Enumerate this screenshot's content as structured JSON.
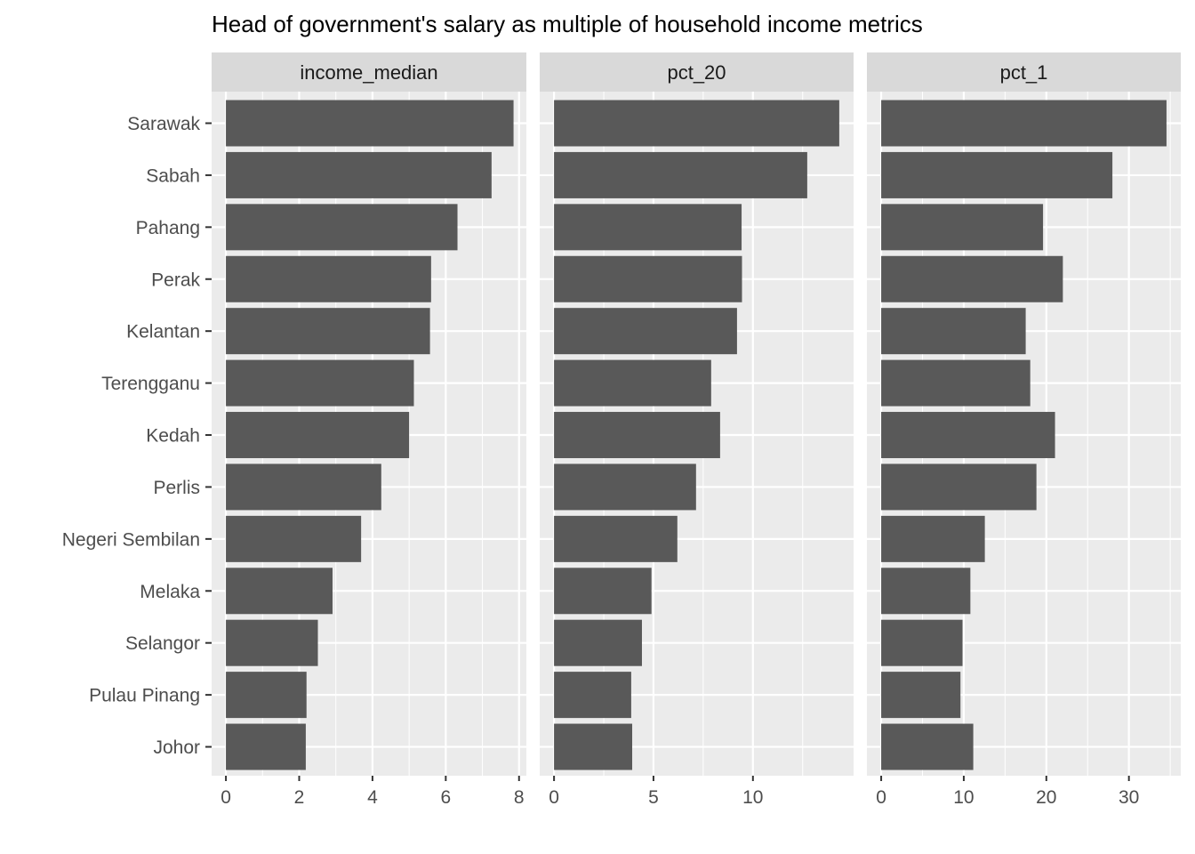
{
  "chart_data": {
    "type": "bar",
    "orientation": "horizontal",
    "title": "Head of government's salary as multiple of household income metrics",
    "categories": [
      "Sarawak",
      "Sabah",
      "Pahang",
      "Perak",
      "Kelantan",
      "Terengganu",
      "Kedah",
      "Perlis",
      "Negeri Sembilan",
      "Melaka",
      "Selangor",
      "Pulau Pinang",
      "Johor"
    ],
    "grid": true,
    "facets": [
      {
        "label": "income_median",
        "xlim": [
          -0.39,
          8.2
        ],
        "ticks": [
          0,
          2,
          4,
          6,
          8
        ],
        "values": [
          7.85,
          7.25,
          6.32,
          5.6,
          5.57,
          5.13,
          5.0,
          4.24,
          3.69,
          2.91,
          2.51,
          2.2,
          2.18
        ]
      },
      {
        "label": "pct_20",
        "xlim": [
          -0.72,
          15.06
        ],
        "ticks": [
          0,
          5,
          10
        ],
        "values": [
          14.34,
          12.73,
          9.43,
          9.45,
          9.2,
          7.9,
          8.35,
          7.14,
          6.2,
          4.9,
          4.42,
          3.88,
          3.93
        ]
      },
      {
        "label": "pct_1",
        "xlim": [
          -1.73,
          36.28
        ],
        "ticks": [
          0,
          10,
          20,
          30
        ],
        "values": [
          34.55,
          28.0,
          19.6,
          22.0,
          17.5,
          18.05,
          21.05,
          18.8,
          12.55,
          10.8,
          9.85,
          9.6,
          11.15
        ]
      }
    ]
  }
}
